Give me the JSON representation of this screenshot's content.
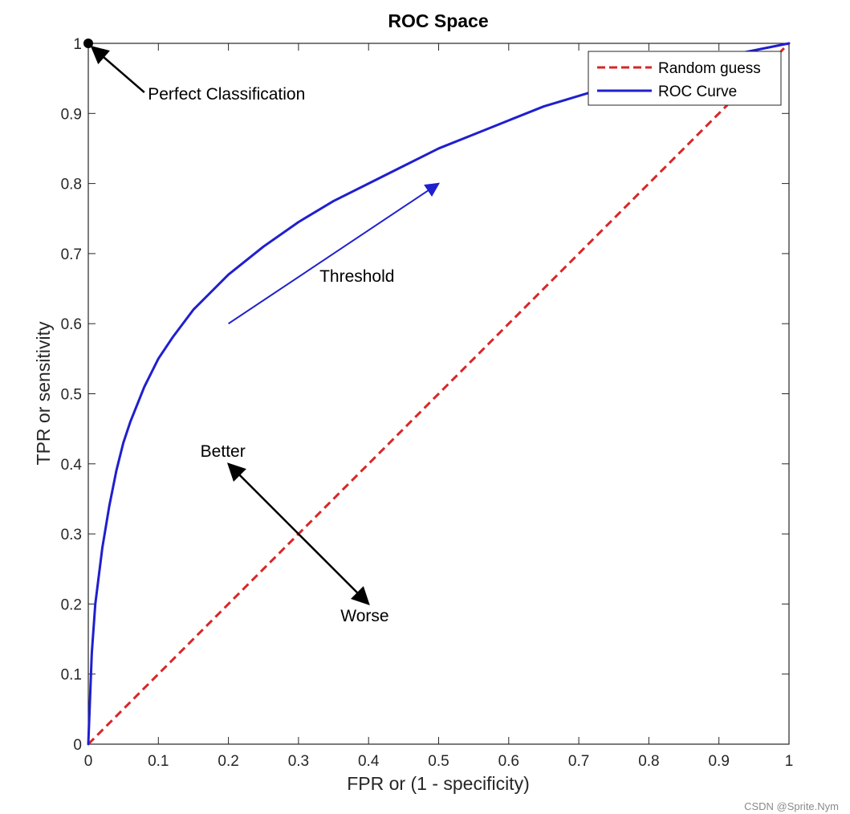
{
  "chart_data": {
    "type": "line",
    "title": "ROC Space",
    "xlabel": "FPR or (1 - specificity)",
    "ylabel": "TPR or sensitivity",
    "xlim": [
      0,
      1
    ],
    "ylim": [
      0,
      1
    ],
    "xticks": [
      0,
      0.1,
      0.2,
      0.3,
      0.4,
      0.5,
      0.6,
      0.7,
      0.8,
      0.9,
      1
    ],
    "yticks": [
      0,
      0.1,
      0.2,
      0.3,
      0.4,
      0.5,
      0.6,
      0.7,
      0.8,
      0.9,
      1
    ],
    "xtick_labels": [
      "0",
      "0.1",
      "0.2",
      "0.3",
      "0.4",
      "0.5",
      "0.6",
      "0.7",
      "0.8",
      "0.9",
      "1"
    ],
    "ytick_labels": [
      "0",
      "0.1",
      "0.2",
      "0.3",
      "0.4",
      "0.5",
      "0.6",
      "0.7",
      "0.8",
      "0.9",
      "1"
    ],
    "grid": false,
    "legend_position": "top-right",
    "series": [
      {
        "name": "Random guess",
        "style": "dashed",
        "color": "#d62728",
        "x": [
          0,
          1
        ],
        "y": [
          0,
          1
        ]
      },
      {
        "name": "ROC Curve",
        "style": "solid",
        "color": "#1f1fcf",
        "x": [
          0,
          0.005,
          0.01,
          0.02,
          0.03,
          0.04,
          0.05,
          0.06,
          0.08,
          0.1,
          0.12,
          0.15,
          0.2,
          0.25,
          0.3,
          0.35,
          0.4,
          0.45,
          0.5,
          0.55,
          0.6,
          0.65,
          0.7,
          0.75,
          0.8,
          0.85,
          0.9,
          0.95,
          1.0
        ],
        "y": [
          0,
          0.13,
          0.2,
          0.28,
          0.34,
          0.39,
          0.43,
          0.46,
          0.51,
          0.55,
          0.58,
          0.62,
          0.67,
          0.71,
          0.745,
          0.775,
          0.8,
          0.825,
          0.85,
          0.87,
          0.89,
          0.91,
          0.925,
          0.94,
          0.955,
          0.965,
          0.98,
          0.99,
          1.0
        ]
      }
    ],
    "points": [
      {
        "x": 0,
        "y": 1,
        "label": "Perfect Classification"
      }
    ],
    "annotations": [
      {
        "text": "Perfect Classification",
        "color": "#000000",
        "arrow_from": [
          0.08,
          0.93
        ],
        "arrow_to": [
          0.005,
          0.995
        ],
        "text_at": [
          0.085,
          0.92
        ]
      },
      {
        "text": "Threshold",
        "color": "#1f1fcf",
        "arrow_from": [
          0.2,
          0.6
        ],
        "arrow_to": [
          0.5,
          0.8
        ],
        "text_at": [
          0.33,
          0.66
        ]
      },
      {
        "text": "Better",
        "color": "#000000",
        "arrow_from": [
          0.3,
          0.3
        ],
        "arrow_to": [
          0.2,
          0.4
        ],
        "text_at": [
          0.16,
          0.41
        ]
      },
      {
        "text": "Worse",
        "color": "#000000",
        "arrow_from": [
          0.3,
          0.3
        ],
        "arrow_to": [
          0.4,
          0.2
        ],
        "text_at": [
          0.36,
          0.175
        ]
      }
    ]
  },
  "watermark": "CSDN @Sprite.Nym"
}
